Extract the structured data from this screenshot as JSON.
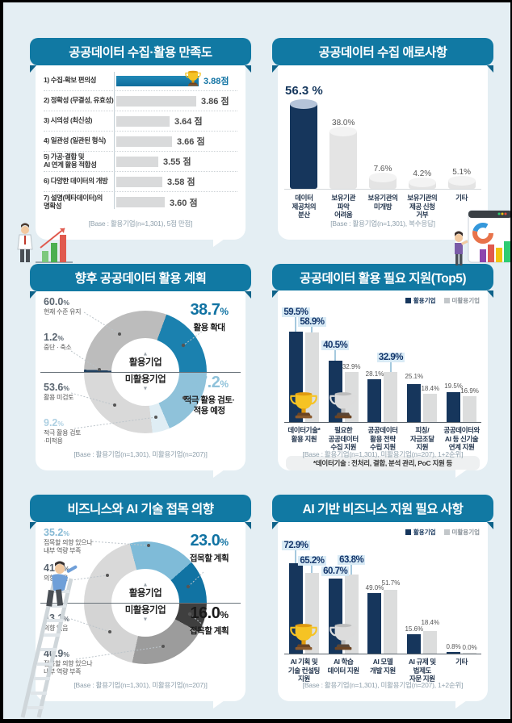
{
  "colors": {
    "background": "#e4eef3",
    "ribbon_blue": "#1179a3",
    "navy": "#16365c",
    "accent_blue": "#1173a3",
    "light_blue": "#7fbbd8",
    "pale_blue": "#dfedf4",
    "bar_gray": "#dcdddd",
    "highlight_bg": "#d8eaf5"
  },
  "icons": {
    "winner": "trophy-gold-icon",
    "runner_up": "trophy-silver-icon"
  },
  "chart_data": [
    {
      "type": "bar",
      "variant": "horizontal",
      "title": "공공데이터 수집·활용 만족도",
      "base": "[Base : 활용기업(n=1,301), 5점 만점]",
      "xlim": [
        3.2,
        3.88
      ],
      "categories": [
        "1) 수집-확보 편의성",
        "2) 정확성 (무결성, 유효성)",
        "3) 시의성 (최신성)",
        "4) 일관성 (일관된 형식)",
        "5) 가공·결합 및\nAI 연계 활용 적합성",
        "6) 다양한 데이터의 개방",
        "7) 설명(메타데이터)의\n명확성"
      ],
      "values": [
        3.88,
        3.86,
        3.64,
        3.66,
        3.55,
        3.58,
        3.6
      ],
      "value_labels": [
        "3.88점",
        "3.86 점",
        "3.64 점",
        "3.66 점",
        "3.55 점",
        "3.58 점",
        "3.60 점"
      ],
      "highlight_index": 0,
      "trophy": "gold"
    },
    {
      "type": "bar",
      "variant": "cylinder",
      "title": "공공데이터 수집 애로사항",
      "base": "[Base : 활용기업(n=1,301), 복수응답]",
      "ylim": [
        0,
        60
      ],
      "categories": [
        "데이터\n제공처의\n분산",
        "보유기관\n파악\n어려움",
        "보유기관의\n미개방",
        "보유기관의\n제공 신청\n거부",
        "기타"
      ],
      "values": [
        56.3,
        38.0,
        7.6,
        4.2,
        5.1
      ],
      "value_labels": [
        "56.3 %",
        "38.0%",
        "7.6%",
        "4.2%",
        "5.1%"
      ],
      "highlight_index": 0
    },
    {
      "type": "pie",
      "variant": "double-half-donut",
      "title": "향후 공공데이터 활용 계획",
      "base": "[Base : 활용기업(n=1,301), 미활용기업(n=207)]",
      "center": {
        "up_arrow": "▲",
        "top": "활용기업",
        "bottom": "미활용기업",
        "down_arrow": "▼"
      },
      "top_half": [
        {
          "label": "중단 · 축소",
          "value": 1.2,
          "num": "1.2",
          "color": "#21405f",
          "side": "left",
          "slot": 1,
          "num_color": "#5a6570"
        },
        {
          "label": "현재 수준 유지",
          "value": 60.0,
          "num": "60.0",
          "color": "#bcbcbc",
          "side": "left",
          "slot": 0,
          "num_color": "#5a6570"
        },
        {
          "label": "활용 확대",
          "value": 38.7,
          "num": "38.7",
          "color": "#1b81af",
          "side": "right",
          "slot": 0,
          "num_color": "#1173a3"
        }
      ],
      "bottom_half": [
        {
          "label": "적극 활용 검토·\n적용 예정",
          "value": 37.2,
          "num": "37.2",
          "color": "#8fc2da",
          "side": "right",
          "slot": 1,
          "num_color": "#8fc2da"
        },
        {
          "label": "적극 활용 검토\n·미적용",
          "value": 9.2,
          "num": "9.2",
          "color": "#dfedf4",
          "side": "left",
          "slot": 3,
          "num_color": "#aed0e2"
        },
        {
          "label": "활용 미검토",
          "value": 53.6,
          "num": "53.6",
          "color": "#d9d9d9",
          "side": "left",
          "slot": 2,
          "num_color": "#5a6570"
        }
      ]
    },
    {
      "type": "bar",
      "variant": "grouped",
      "title": "공공데이터 활용 필요 지원(Top5)",
      "base": "[Base : 활용기업(n=1,301), 미활용기업(n=207), 1+2순위]",
      "legend": [
        "활용기업",
        "미활용기업"
      ],
      "note": "*데이터기술 : 전처리, 결합, 분석 관리, PoC 지원 등",
      "categories": [
        "데이터기술*\n활용 지원",
        "필요한\n공공데이터\n수집 지원",
        "공공데이터\n활용 전략\n수립 지원",
        "피칭/\n자금조달\n지원",
        "공공데이터와\nAI 등 신기술\n연계 지원"
      ],
      "series": [
        {
          "name": "활용기업",
          "values": [
            59.5,
            40.5,
            28.1,
            25.1,
            19.5
          ],
          "labels": [
            "59.5%",
            "40.5%",
            "28.1%",
            "25.1%",
            "19.5%"
          ],
          "emph": [
            true,
            true,
            false,
            false,
            false
          ]
        },
        {
          "name": "미활용기업",
          "values": [
            58.9,
            32.9,
            32.9,
            18.4,
            16.9
          ],
          "labels": [
            "58.9%",
            "32.9%",
            "32.9%",
            "18.4%",
            "16.9%"
          ],
          "emph": [
            true,
            false,
            true,
            false,
            false
          ]
        }
      ],
      "trophies": [
        "gold",
        "silver"
      ]
    },
    {
      "type": "pie",
      "variant": "double-half-donut",
      "title": "비즈니스와 AI 기술 접목 의향",
      "base": "[Base : 활용기업(n=1,301), 미활용기업(n=207)]",
      "center": {
        "up_arrow": "▲",
        "top": "활용기업",
        "bottom": "미활용기업",
        "down_arrow": "▼"
      },
      "top_half": [
        {
          "label": "의향 없음",
          "value": 41.8,
          "num": "41.8",
          "color": "#d9d9d9",
          "side": "left",
          "slot": 1,
          "num_color": "#5a6570"
        },
        {
          "label": "접목할 의향 있으나\n내부 역량 부족",
          "value": 35.2,
          "num": "35.2",
          "color": "#7fbbd8",
          "side": "left",
          "slot": 0,
          "num_color": "#85b9d4"
        },
        {
          "label": "접목할 계획",
          "value": 23.0,
          "num": "23.0",
          "color": "#1173a3",
          "side": "right",
          "slot": 0,
          "num_color": "#1173a3"
        }
      ],
      "bottom_half": [
        {
          "label": "접목할 계획",
          "value": 16.0,
          "num": "16.0",
          "color": "#3f3f3f",
          "side": "right",
          "slot": 1,
          "num_color": "#1a1a1a"
        },
        {
          "label": "접목할 의향 있으나\n내부 역량 부족",
          "value": 40.9,
          "num": "40.9",
          "color": "#9c9c9c",
          "side": "left",
          "slot": 3,
          "num_color": "#5a6570"
        },
        {
          "label": "의향 없음",
          "value": 43.1,
          "num": "43.1",
          "color": "#d4d4d4",
          "side": "left",
          "slot": 2,
          "num_color": "#5a6570"
        }
      ]
    },
    {
      "type": "bar",
      "variant": "grouped",
      "title": "AI 기반 비즈니스 지원 필요 사항",
      "base": "[Base : 활용기업(n=1,301), 미활용기업(n=207), 1+2순위]",
      "legend": [
        "활용기업",
        "미활용기업"
      ],
      "categories": [
        "AI 기획 및\n기술 컨설팅\n지원",
        "AI 학습\n데이터 지원",
        "AI 모델\n개발 지원",
        "AI 규제 및\n법제도\n자문 지원",
        "기타"
      ],
      "series": [
        {
          "name": "활용기업",
          "values": [
            72.9,
            60.7,
            49.0,
            15.6,
            0.8
          ],
          "labels": [
            "72.9%",
            "60.7%",
            "49.0%",
            "15.6%",
            "0.8%"
          ],
          "emph": [
            true,
            true,
            false,
            false,
            false
          ]
        },
        {
          "name": "미활용기업",
          "values": [
            65.2,
            63.8,
            51.7,
            18.4,
            0.0
          ],
          "labels": [
            "65.2%",
            "63.8%",
            "51.7%",
            "18.4%",
            "0.0%"
          ],
          "emph": [
            true,
            true,
            false,
            false,
            false
          ]
        }
      ],
      "trophies": [
        "gold",
        "silver"
      ]
    }
  ]
}
